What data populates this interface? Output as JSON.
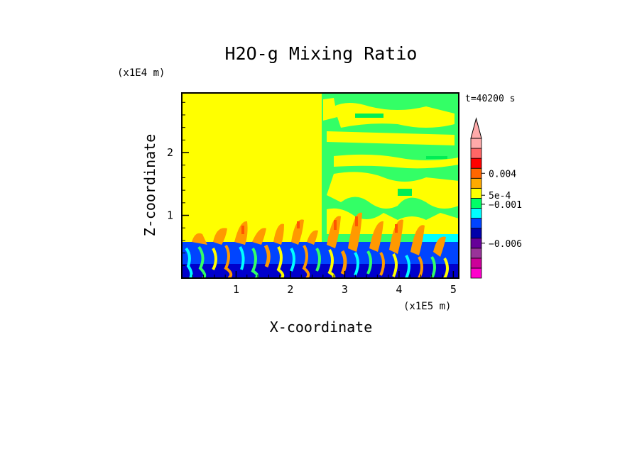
{
  "chart_data": {
    "type": "heatmap",
    "title": "H2O-g Mixing Ratio",
    "xlabel": "X-coordinate",
    "ylabel": "Z-coordinate",
    "x_unit": "(x1E5 m)",
    "y_unit": "(x1E4 m)",
    "time_label": "t=40200 s",
    "xlim": [
      0,
      5.1
    ],
    "ylim": [
      0,
      2.95
    ],
    "x_ticks": [
      1,
      2,
      3,
      4,
      5
    ],
    "y_ticks": [
      1,
      2
    ],
    "colorbar": {
      "colors": [
        "#ff00cc",
        "#cc0099",
        "#993399",
        "#660099",
        "#0000aa",
        "#0044ff",
        "#00ffff",
        "#00ff66",
        "#ffff00",
        "#ffaa00",
        "#ff6600",
        "#ff0000",
        "#ff6666",
        "#ffaaaa"
      ],
      "tick_labels": [
        "0.004",
        "5e-4",
        "−0.001",
        "−0.006"
      ],
      "extend": "max"
    },
    "regions": [
      {
        "name": "dry-layer-left",
        "x": [
          0,
          2.55
        ],
        "z": [
          0.6,
          2.95
        ],
        "level": "5e-4 to 0.004",
        "color": "#ffff00"
      },
      {
        "name": "moist-turbulent-right",
        "x": [
          2.55,
          5.1
        ],
        "z": [
          0.6,
          2.95
        ],
        "level": "mixed -0.001 to 0.004",
        "color": "#33ff66"
      },
      {
        "name": "boundary-layer",
        "x": [
          0,
          5.1
        ],
        "z": [
          0,
          0.6
        ],
        "level": "-0.006 to 0.004",
        "color": "#0044ff"
      }
    ]
  }
}
